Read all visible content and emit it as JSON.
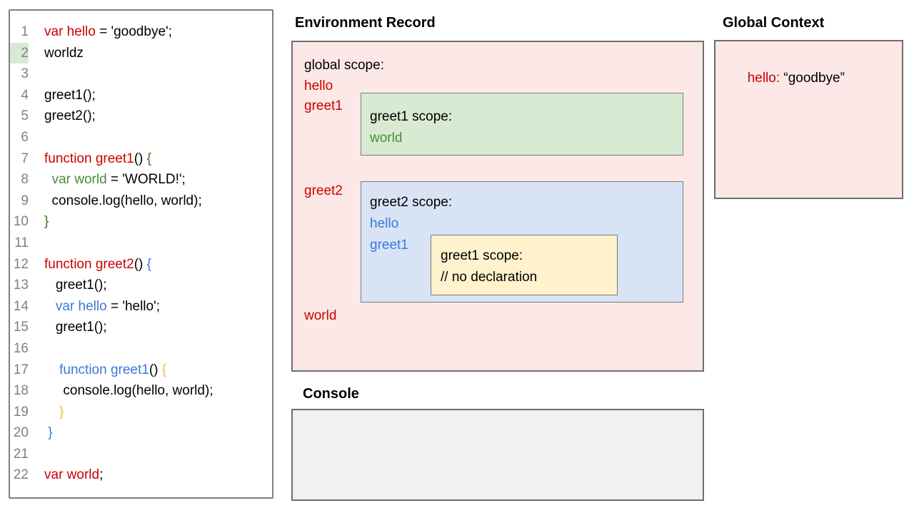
{
  "colors": {
    "red": "#cc0000",
    "green_ident": "#4a8c3b",
    "green_brace": "#38761d",
    "blue": "#3c78d8",
    "gold": "#f1c232",
    "black": "#000000",
    "line_number_gray": "#808080",
    "highlight_green": "#d9ead3",
    "panel_pink": "#fce8e6",
    "panel_green": "#d9ead3",
    "panel_blue": "#d8e4f6",
    "panel_yellow": "#fff2cc",
    "console_gray": "#f1f1f1"
  },
  "code_panel": {
    "lines": [
      {
        "num": "1",
        "highlight": false,
        "segments": [
          {
            "t": "var hello",
            "c": "red"
          },
          {
            "t": " = 'goodbye';",
            "c": "black"
          }
        ]
      },
      {
        "num": "2",
        "highlight": true,
        "segments": [
          {
            "t": "worldz",
            "c": "black"
          }
        ]
      },
      {
        "num": "3",
        "highlight": false,
        "segments": []
      },
      {
        "num": "4",
        "highlight": false,
        "segments": [
          {
            "t": "greet1();",
            "c": "black"
          }
        ]
      },
      {
        "num": "5",
        "highlight": false,
        "segments": [
          {
            "t": "greet2();",
            "c": "black"
          }
        ]
      },
      {
        "num": "6",
        "highlight": false,
        "segments": []
      },
      {
        "num": "7",
        "highlight": false,
        "segments": [
          {
            "t": "function greet1",
            "c": "red"
          },
          {
            "t": "() ",
            "c": "black"
          },
          {
            "t": "{",
            "c": "green_brace"
          }
        ]
      },
      {
        "num": "8",
        "highlight": false,
        "segments": [
          {
            "t": "  ",
            "c": "black"
          },
          {
            "t": "var world",
            "c": "green_ident"
          },
          {
            "t": " = 'WORLD!';",
            "c": "black"
          }
        ]
      },
      {
        "num": "9",
        "highlight": false,
        "segments": [
          {
            "t": "  console.log(hello, world);",
            "c": "black"
          }
        ]
      },
      {
        "num": "10",
        "highlight": false,
        "segments": [
          {
            "t": "}",
            "c": "green_brace"
          }
        ]
      },
      {
        "num": "11",
        "highlight": false,
        "segments": []
      },
      {
        "num": "12",
        "highlight": false,
        "segments": [
          {
            "t": "function greet2",
            "c": "red"
          },
          {
            "t": "() ",
            "c": "black"
          },
          {
            "t": "{",
            "c": "blue"
          }
        ]
      },
      {
        "num": "13",
        "highlight": false,
        "segments": [
          {
            "t": "   greet1();",
            "c": "black"
          }
        ]
      },
      {
        "num": "14",
        "highlight": false,
        "segments": [
          {
            "t": "   ",
            "c": "black"
          },
          {
            "t": "var hello",
            "c": "blue"
          },
          {
            "t": " = 'hello';",
            "c": "black"
          }
        ]
      },
      {
        "num": "15",
        "highlight": false,
        "segments": [
          {
            "t": "   greet1();",
            "c": "black"
          }
        ]
      },
      {
        "num": "16",
        "highlight": false,
        "segments": []
      },
      {
        "num": "17",
        "highlight": false,
        "segments": [
          {
            "t": "    ",
            "c": "black"
          },
          {
            "t": "function greet1",
            "c": "blue"
          },
          {
            "t": "() ",
            "c": "black"
          },
          {
            "t": "{",
            "c": "gold"
          }
        ]
      },
      {
        "num": "18",
        "highlight": false,
        "segments": [
          {
            "t": "     console.log(hello, world);",
            "c": "black"
          }
        ]
      },
      {
        "num": "19",
        "highlight": false,
        "segments": [
          {
            "t": "    ",
            "c": "black"
          },
          {
            "t": "}",
            "c": "gold"
          }
        ]
      },
      {
        "num": "20",
        "highlight": false,
        "segments": [
          {
            "t": " ",
            "c": "black"
          },
          {
            "t": "}",
            "c": "blue"
          }
        ]
      },
      {
        "num": "21",
        "highlight": false,
        "segments": []
      },
      {
        "num": "22",
        "highlight": false,
        "segments": [
          {
            "t": "var world",
            "c": "red"
          },
          {
            "t": ";",
            "c": "black"
          }
        ]
      }
    ]
  },
  "environment_record": {
    "title": "Environment Record",
    "global_scope_label": "global scope:",
    "var_hello": "hello",
    "var_greet1": "greet1",
    "var_greet2": "greet2",
    "var_world": "world",
    "greet1_scope": {
      "label": "greet1 scope:",
      "var_world": "world"
    },
    "greet2_scope": {
      "label": "greet2 scope:",
      "var_hello": "hello",
      "var_greet1": "greet1",
      "nested_greet1_scope": {
        "label": "greet1 scope:",
        "comment": "// no declaration"
      }
    }
  },
  "global_context": {
    "title": "Global Context",
    "entry_key": "hello:",
    "entry_value": " “goodbye”"
  },
  "console": {
    "title": "Console"
  }
}
